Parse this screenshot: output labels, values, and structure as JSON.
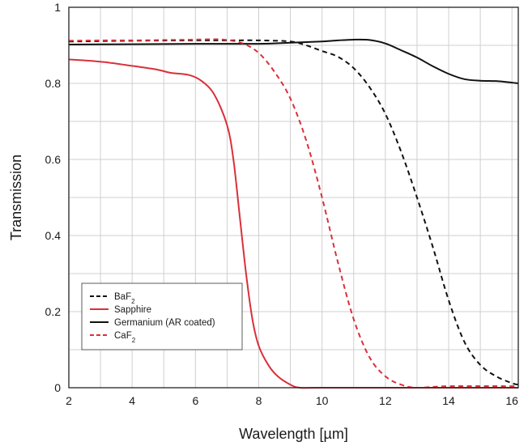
{
  "chart_data": {
    "type": "line",
    "title": "",
    "xlabel": "Wavelength [µm]",
    "ylabel": "Transmission",
    "xlim": [
      2,
      16.2
    ],
    "ylim": [
      0,
      1
    ],
    "x_ticks": [
      2,
      4,
      6,
      8,
      10,
      12,
      14,
      16
    ],
    "x_tick_labels": [
      "2",
      "4",
      "6",
      "8",
      "10",
      "12",
      "14",
      "16"
    ],
    "y_ticks": [
      0,
      0.2,
      0.4,
      0.6,
      0.8,
      1
    ],
    "y_tick_labels": [
      "0",
      "0.2",
      "0.4",
      "0.6",
      "0.8",
      "1"
    ],
    "x_minor_grid": [
      3,
      5,
      7,
      9,
      11,
      13,
      15
    ],
    "y_minor_grid": [
      0.1,
      0.3,
      0.5,
      0.7,
      0.9
    ],
    "grid": true,
    "legend_position": "lower-left",
    "series": [
      {
        "name": "BaF",
        "name_subscript": "2",
        "color": "#111111",
        "dash": true,
        "points": [
          [
            2,
            0.91
          ],
          [
            4,
            0.912
          ],
          [
            6,
            0.913
          ],
          [
            7,
            0.913
          ],
          [
            8,
            0.913
          ],
          [
            9,
            0.91
          ],
          [
            9.5,
            0.9
          ],
          [
            10,
            0.885
          ],
          [
            10.5,
            0.87
          ],
          [
            11,
            0.84
          ],
          [
            11.5,
            0.79
          ],
          [
            12,
            0.72
          ],
          [
            12.5,
            0.62
          ],
          [
            13,
            0.5
          ],
          [
            13.5,
            0.37
          ],
          [
            14,
            0.23
          ],
          [
            14.5,
            0.12
          ],
          [
            15,
            0.06
          ],
          [
            15.5,
            0.03
          ],
          [
            16,
            0.012
          ],
          [
            16.2,
            0.008
          ]
        ]
      },
      {
        "name": "Sapphire",
        "color": "#d9303a",
        "dash": false,
        "points": [
          [
            2,
            0.863
          ],
          [
            3,
            0.857
          ],
          [
            4,
            0.846
          ],
          [
            4.8,
            0.836
          ],
          [
            5.2,
            0.828
          ],
          [
            5.8,
            0.822
          ],
          [
            6.2,
            0.806
          ],
          [
            6.6,
            0.77
          ],
          [
            7,
            0.69
          ],
          [
            7.2,
            0.6
          ],
          [
            7.4,
            0.45
          ],
          [
            7.6,
            0.3
          ],
          [
            7.8,
            0.18
          ],
          [
            8,
            0.11
          ],
          [
            8.3,
            0.06
          ],
          [
            8.6,
            0.03
          ],
          [
            9,
            0.008
          ],
          [
            9.3,
            0.0
          ],
          [
            10,
            0.0
          ],
          [
            14,
            0.0
          ],
          [
            16.2,
            0.0
          ]
        ]
      },
      {
        "name": "Germanium (AR coated)",
        "color": "#111111",
        "dash": false,
        "points": [
          [
            2,
            0.902
          ],
          [
            4,
            0.903
          ],
          [
            6,
            0.904
          ],
          [
            8,
            0.904
          ],
          [
            9,
            0.907
          ],
          [
            10,
            0.91
          ],
          [
            10.5,
            0.913
          ],
          [
            11,
            0.915
          ],
          [
            11.5,
            0.914
          ],
          [
            12,
            0.905
          ],
          [
            12.5,
            0.887
          ],
          [
            13,
            0.868
          ],
          [
            13.5,
            0.845
          ],
          [
            14,
            0.825
          ],
          [
            14.5,
            0.811
          ],
          [
            15,
            0.807
          ],
          [
            15.5,
            0.806
          ],
          [
            16,
            0.802
          ],
          [
            16.2,
            0.8
          ]
        ]
      },
      {
        "name": "CaF",
        "name_subscript": "2",
        "color": "#d9303a",
        "dash": true,
        "points": [
          [
            2,
            0.912
          ],
          [
            3,
            0.913
          ],
          [
            4,
            0.913
          ],
          [
            5,
            0.914
          ],
          [
            6,
            0.915
          ],
          [
            6.6,
            0.916
          ],
          [
            7,
            0.914
          ],
          [
            7.5,
            0.905
          ],
          [
            8,
            0.88
          ],
          [
            8.5,
            0.83
          ],
          [
            9,
            0.76
          ],
          [
            9.5,
            0.65
          ],
          [
            10,
            0.5
          ],
          [
            10.5,
            0.33
          ],
          [
            11,
            0.18
          ],
          [
            11.5,
            0.08
          ],
          [
            12,
            0.03
          ],
          [
            12.5,
            0.008
          ],
          [
            13,
            0.0
          ],
          [
            14,
            0.004
          ],
          [
            16.2,
            0.004
          ]
        ]
      }
    ]
  }
}
